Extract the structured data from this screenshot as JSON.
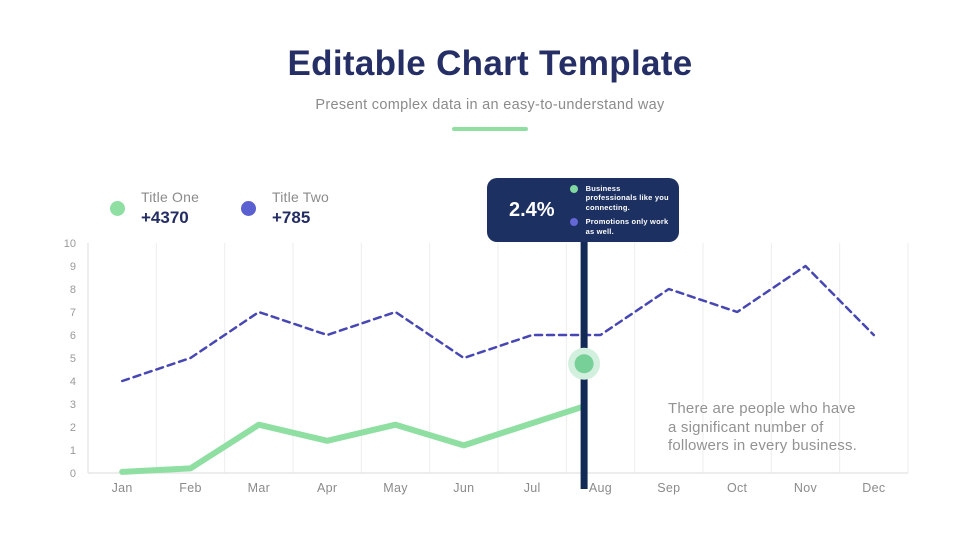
{
  "header": {
    "title": "Editable Chart Template",
    "subtitle": "Present complex data in an easy-to-understand way",
    "underline_color": "#8FDFA3"
  },
  "legend": {
    "items": [
      {
        "label": "Title One",
        "value": "+4370",
        "color": "#8FDFA3"
      },
      {
        "label": "Title Two",
        "value": "+785",
        "color": "#5B60D1"
      }
    ]
  },
  "tooltip": {
    "value": "2.4%",
    "background": "#1C3061",
    "items": [
      {
        "label": "Business professionals like you connecting.",
        "color": "#7FD9A0"
      },
      {
        "label": "Promotions only work as well.",
        "color": "#6468D6"
      }
    ]
  },
  "annotation": {
    "lines": [
      "There are people who have",
      "a significant number of",
      "followers in every business."
    ]
  },
  "chart_data": {
    "type": "line",
    "title": "",
    "categories": [
      "Jan",
      "Feb",
      "Mar",
      "Apr",
      "May",
      "Jun",
      "Jul",
      "Aug",
      "Sep",
      "Oct",
      "Nov",
      "Dec"
    ],
    "y_ticks": [
      0,
      1,
      2,
      3,
      4,
      5,
      6,
      7,
      8,
      9,
      10
    ],
    "ylim": [
      0,
      10
    ],
    "grid": "vertical-only",
    "grid_color": "#EDEDED",
    "axis_color": "#E2E2E2",
    "tick_label_color": "#999999",
    "month_label_color": "#8B8B8B",
    "legend_position": "top-left",
    "series": [
      {
        "name": "Title Two",
        "color": "#4747B3",
        "dash": "7 5",
        "width": 2.5,
        "points": [
          [
            0,
            4
          ],
          [
            1,
            5
          ],
          [
            2,
            7
          ],
          [
            3,
            6
          ],
          [
            4,
            7
          ],
          [
            5,
            5
          ],
          [
            6,
            6
          ],
          [
            7,
            6
          ],
          [
            8,
            8
          ],
          [
            9,
            7
          ],
          [
            10,
            9
          ],
          [
            11,
            6
          ]
        ]
      },
      {
        "name": "Title One",
        "color": "#8FDFA3",
        "dash": null,
        "width": 6,
        "points": [
          [
            0,
            0.05
          ],
          [
            1,
            0.2
          ],
          [
            2,
            2.1
          ],
          [
            3,
            1.4
          ],
          [
            4,
            2.1
          ],
          [
            5,
            1.2
          ],
          [
            6.76,
            2.9
          ]
        ]
      }
    ],
    "cursor": {
      "x": 6.76,
      "color": "#122A56",
      "marker_y": 4.75,
      "marker_color": "#77D098",
      "marker_halo": "#D2F0DD"
    }
  }
}
